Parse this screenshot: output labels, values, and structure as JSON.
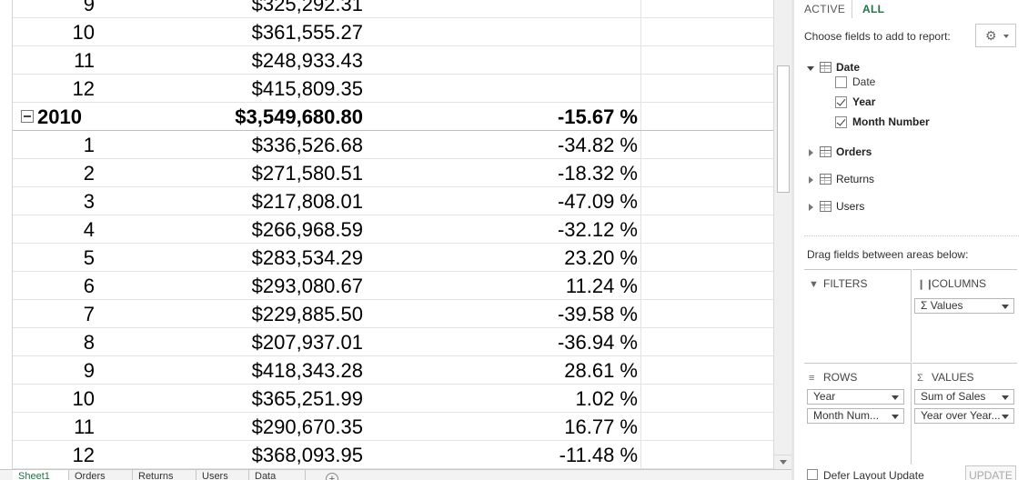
{
  "sheet": {
    "rows": [
      {
        "kind": "month",
        "month": "9",
        "sales": "$325,292.31",
        "yoy": ""
      },
      {
        "kind": "month",
        "month": "10",
        "sales": "$361,555.27",
        "yoy": ""
      },
      {
        "kind": "month",
        "month": "11",
        "sales": "$248,933.43",
        "yoy": ""
      },
      {
        "kind": "month",
        "month": "12",
        "sales": "$415,809.35",
        "yoy": ""
      },
      {
        "kind": "year",
        "year": "2010",
        "sales": "$3,549,680.80",
        "yoy": "-15.67 %"
      },
      {
        "kind": "month",
        "month": "1",
        "sales": "$336,526.68",
        "yoy": "-34.82 %"
      },
      {
        "kind": "month",
        "month": "2",
        "sales": "$271,580.51",
        "yoy": "-18.32 %"
      },
      {
        "kind": "month",
        "month": "3",
        "sales": "$217,808.01",
        "yoy": "-47.09 %"
      },
      {
        "kind": "month",
        "month": "4",
        "sales": "$266,968.59",
        "yoy": "-32.12 %"
      },
      {
        "kind": "month",
        "month": "5",
        "sales": "$283,534.29",
        "yoy": "23.20 %"
      },
      {
        "kind": "month",
        "month": "6",
        "sales": "$293,080.67",
        "yoy": "11.24 %"
      },
      {
        "kind": "month",
        "month": "7",
        "sales": "$229,885.50",
        "yoy": "-39.58 %"
      },
      {
        "kind": "month",
        "month": "8",
        "sales": "$207,937.01",
        "yoy": "-36.94 %"
      },
      {
        "kind": "month",
        "month": "9",
        "sales": "$418,343.28",
        "yoy": "28.61 %"
      },
      {
        "kind": "month",
        "month": "10",
        "sales": "$365,251.99",
        "yoy": "1.02 %"
      },
      {
        "kind": "month",
        "month": "11",
        "sales": "$290,670.35",
        "yoy": "16.77 %"
      },
      {
        "kind": "month",
        "month": "12",
        "sales": "$368,093.95",
        "yoy": "-11.48 %"
      }
    ],
    "tabs": [
      "Sheet1",
      "Orders",
      "Returns",
      "Users",
      "Data"
    ],
    "add_sheet_symbol": "+"
  },
  "pane": {
    "tab_active": "ACTIVE",
    "tab_all": "ALL",
    "choose_label": "Choose fields to add to report:",
    "settings_icon": "gear-icon",
    "tables": {
      "date": {
        "name": "Date",
        "fields": {
          "date": {
            "name": "Date",
            "checked": false
          },
          "year": {
            "name": "Year",
            "checked": true
          },
          "month_number": {
            "name": "Month Number",
            "checked": true
          }
        }
      },
      "orders": {
        "name": "Orders"
      },
      "returns": {
        "name": "Returns"
      },
      "users": {
        "name": "Users"
      }
    },
    "drag_label": "Drag fields between areas below:",
    "areas": {
      "filters": {
        "title": "FILTERS"
      },
      "columns": {
        "title": "COLUMNS",
        "items": [
          "Σ Values"
        ]
      },
      "rows": {
        "title": "ROWS",
        "items": [
          "Year",
          "Month Num..."
        ]
      },
      "values": {
        "title": "VALUES",
        "items": [
          "Sum of Sales",
          "Year over Year..."
        ]
      }
    },
    "defer_label": "Defer Layout Update",
    "update_label": "UPDATE"
  },
  "colors": {
    "accent_green": "#217346",
    "gridline": "#e3e3e3"
  }
}
